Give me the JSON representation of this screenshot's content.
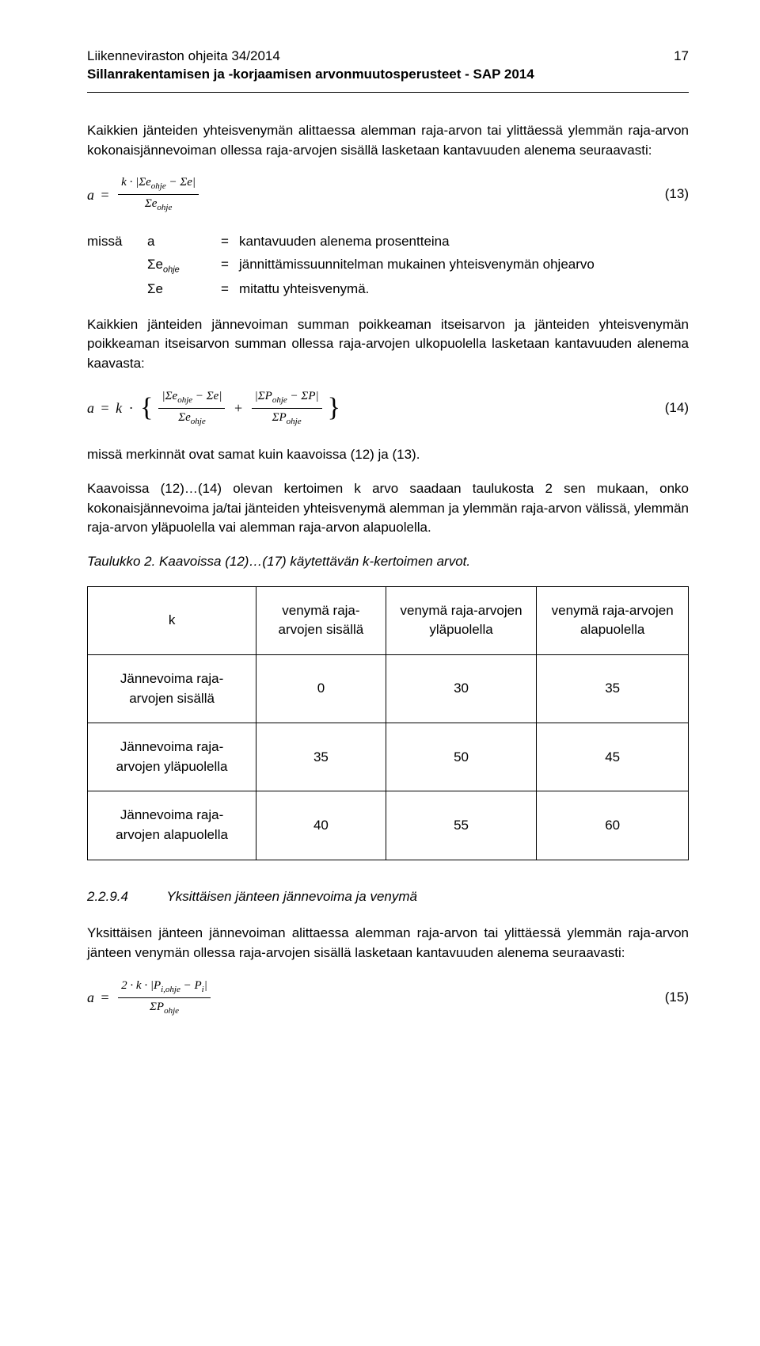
{
  "header": {
    "line1": "Liikenneviraston ohjeita 34/2014",
    "line2": "Sillanrakentamisen ja -korjaamisen arvonmuutosperusteet - SAP 2014",
    "page_number": "17"
  },
  "para1": "Kaikkien jänteiden yhteisvenymän alittaessa alemman raja-arvon tai ylittäessä ylemmän raja-arvon kokonaisjännevoiman ollessa raja-arvojen sisällä lasketaan kantavuuden alenema seuraavasti:",
  "eq13": {
    "lhs": "a = ",
    "num": "k · |Σe_{ohje} − Σe|",
    "den": "Σe_{ohje}",
    "eqnum": "(13)"
  },
  "where_label": "missä",
  "where_rows": [
    {
      "sym": "a",
      "eq": "=",
      "desc": "kantavuuden alenema prosentteina"
    },
    {
      "sym": "Σe_{ohje}",
      "eq": "=",
      "desc": "jännittämissuunnitelman mukainen yhteisvenymän ohjearvo"
    },
    {
      "sym": "Σe",
      "eq": "=",
      "desc": "mitattu yhteisvenymä."
    }
  ],
  "para2": "Kaikkien jänteiden jännevoiman summan poikkeaman itseisarvon ja jänteiden yhteisvenymän poikkeaman itseisarvon summan ollessa raja-arvojen ulkopuolella lasketaan kantavuuden alenema kaavasta:",
  "eq14": {
    "prefix": "a = k · ",
    "frac1_num": "|Σe_{ohje} − Σe|",
    "frac1_den": "Σe_{ohje}",
    "plus": "+",
    "frac2_num": "|ΣP_{ohje} − ΣP|",
    "frac2_den": "ΣP_{ohje}",
    "eqnum": "(14)"
  },
  "para3": "missä merkinnät ovat samat kuin kaavoissa (12) ja (13).",
  "para4": "Kaavoissa (12)…(14) olevan kertoimen k arvo saadaan taulukosta 2 sen mukaan, onko kokonaisjännevoima ja/tai jänteiden yhteisvenymä alemman ja ylemmän raja-arvon välissä, ylemmän raja-arvon yläpuolella vai alemman raja-arvon alapuolella.",
  "table_caption": "Taulukko 2.   Kaavoissa (12)…(17) käytettävän k-kertoimen arvot.",
  "table": {
    "corner": "k",
    "col_headers": [
      "venymä raja-arvojen sisällä",
      "venymä raja-arvojen yläpuolella",
      "venymä raja-arvojen alapuolella"
    ],
    "row_headers": [
      "Jännevoima raja-arvojen sisällä",
      "Jännevoima raja-arvojen yläpuolella",
      "Jännevoima raja-arvojen alapuolella"
    ],
    "cells": [
      [
        "0",
        "30",
        "35"
      ],
      [
        "35",
        "50",
        "45"
      ],
      [
        "40",
        "55",
        "60"
      ]
    ]
  },
  "section": {
    "number": "2.2.9.4",
    "title": "Yksittäisen jänteen jännevoima ja venymä"
  },
  "para5": "Yksittäisen jänteen jännevoiman alittaessa alemman raja-arvon tai ylittäessä ylemmän raja-arvon jänteen venymän ollessa raja-arvojen sisällä lasketaan kantavuuden alenema seuraavasti:",
  "eq15": {
    "lhs": "a = ",
    "num": "2 · k · |P_{i,ohje} − P_i|",
    "den": "ΣP_{ohje}",
    "eqnum": "(15)"
  }
}
